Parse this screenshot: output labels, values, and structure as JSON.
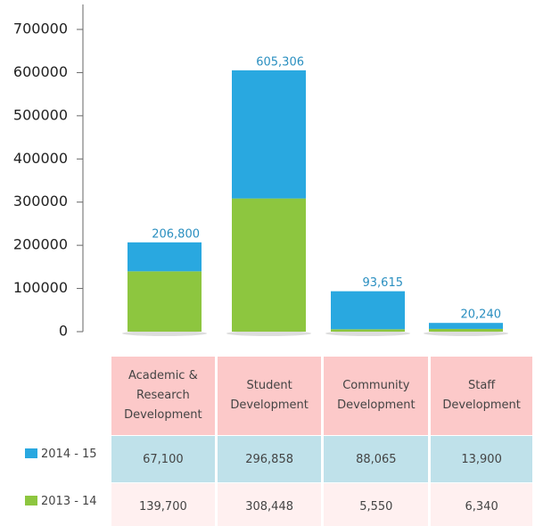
{
  "chart_data": {
    "type": "bar",
    "categories": [
      "Academic & Research Development",
      "Student Development",
      "Community Development",
      "Staff Development"
    ],
    "series": [
      {
        "name": "2014 - 15",
        "color": "#29a8e0",
        "values": [
          67100,
          296858,
          88065,
          13900
        ],
        "value_labels": [
          "67,100",
          "296,858",
          "88,065",
          "13,900"
        ]
      },
      {
        "name": "2013 - 14",
        "color": "#8dc63f",
        "values": [
          139700,
          308448,
          5550,
          6340
        ],
        "value_labels": [
          "139,700",
          "308,448",
          "5,550",
          "6,340"
        ]
      }
    ],
    "totals": [
      206800,
      605306,
      93615,
      20240
    ],
    "total_labels": [
      "206,800",
      "605,306",
      "93,615",
      "20,240"
    ],
    "ylim": [
      0,
      700000
    ],
    "yticks": [
      0,
      100000,
      200000,
      300000,
      400000,
      500000,
      600000,
      700000
    ],
    "stacked": true
  }
}
